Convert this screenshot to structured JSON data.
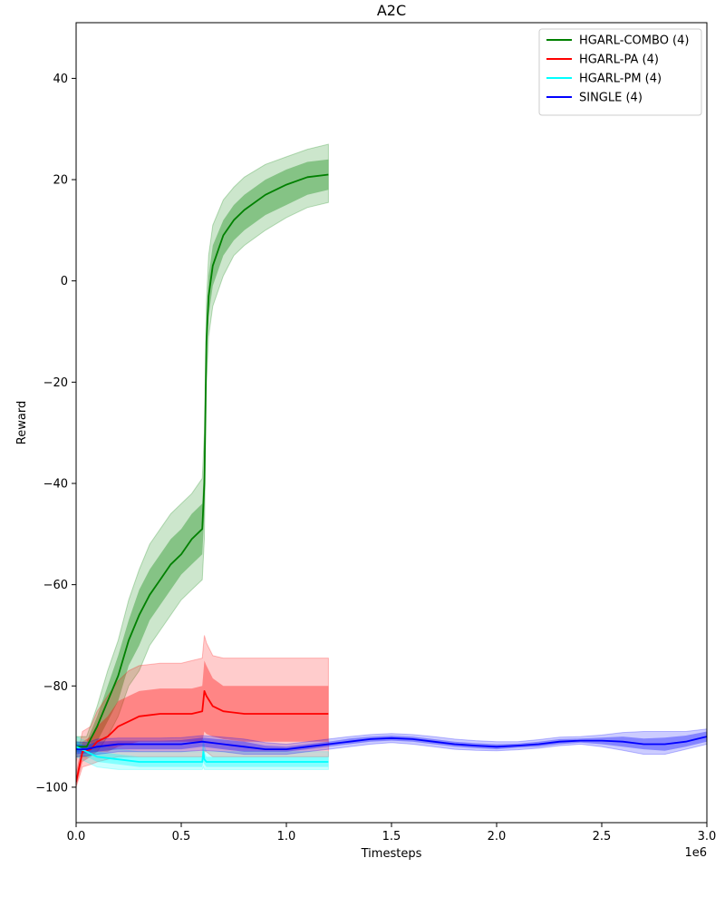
{
  "chart_data": {
    "type": "line",
    "title": "A2C",
    "xlabel": "Timesteps",
    "ylabel": "Reward",
    "x_offset_label": "1e6",
    "xlim": [
      0,
      3.0
    ],
    "ylim": [
      -107,
      51
    ],
    "xticks": [
      0,
      0.5,
      1.0,
      1.5,
      2.0,
      2.5,
      3.0
    ],
    "xtick_labels": [
      "0.0",
      "0.5",
      "1.0",
      "1.5",
      "2.0",
      "2.5",
      "3.0"
    ],
    "yticks": [
      -100,
      -80,
      -60,
      -40,
      -20,
      0,
      20,
      40
    ],
    "ytick_labels": [
      "−100",
      "−80",
      "−60",
      "−40",
      "−20",
      "0",
      "20",
      "40"
    ],
    "grid": false,
    "legend_position": "top-right",
    "series": [
      {
        "name": "HGARL-COMBO (4)",
        "color": "#008000",
        "x": [
          0,
          0.05,
          0.1,
          0.15,
          0.2,
          0.25,
          0.3,
          0.35,
          0.4,
          0.45,
          0.5,
          0.55,
          0.6,
          0.61,
          0.62,
          0.63,
          0.65,
          0.7,
          0.75,
          0.8,
          0.9,
          1.0,
          1.1,
          1.2
        ],
        "y": [
          -92,
          -92,
          -88,
          -83,
          -78,
          -71,
          -66,
          -62,
          -59,
          -56,
          -54,
          -51,
          -49,
          -40,
          -12,
          -3,
          3,
          9,
          12,
          14,
          17,
          19,
          20.5,
          21
        ],
        "std_low": [
          -93,
          -93,
          -91,
          -87,
          -83,
          -76,
          -72,
          -67,
          -64,
          -61,
          -58,
          -56,
          -54,
          -46,
          -16,
          -7,
          -1,
          5,
          8,
          10,
          13,
          15,
          17,
          18
        ],
        "std_high": [
          -91,
          -91,
          -86,
          -80,
          -74,
          -67,
          -61,
          -57,
          -54,
          -51,
          -49,
          -46,
          -44,
          -35,
          -8,
          1,
          7,
          12,
          15,
          17,
          20,
          22,
          23.5,
          24
        ],
        "min": [
          -94,
          -94,
          -93,
          -90,
          -86,
          -80,
          -77,
          -72,
          -69,
          -66,
          -63,
          -61,
          -59,
          -51,
          -20,
          -11,
          -5,
          1,
          5,
          7,
          10,
          12.5,
          14.5,
          15.5
        ],
        "max": [
          -90,
          -90,
          -84,
          -77,
          -71,
          -63,
          -57,
          -52,
          -49,
          -46,
          -44,
          -42,
          -39,
          -30,
          -4,
          5,
          11,
          16,
          18.5,
          20.5,
          23,
          24.5,
          26,
          27
        ]
      },
      {
        "name": "HGARL-PA (4)",
        "color": "#ff0000",
        "x": [
          0,
          0.03,
          0.07,
          0.1,
          0.15,
          0.2,
          0.25,
          0.3,
          0.4,
          0.5,
          0.55,
          0.6,
          0.61,
          0.62,
          0.65,
          0.7,
          0.8,
          0.9,
          1.0,
          1.1,
          1.2
        ],
        "y": [
          -99,
          -93,
          -92.5,
          -91,
          -90,
          -88,
          -87,
          -86,
          -85.5,
          -85.5,
          -85.5,
          -85,
          -81,
          -82,
          -84,
          -85,
          -85.5,
          -85.5,
          -85.5,
          -85.5,
          -85.5
        ],
        "std_low": [
          -100,
          -95,
          -94,
          -93,
          -93,
          -92,
          -91.5,
          -91,
          -91,
          -91,
          -91,
          -91,
          -89,
          -89.5,
          -90,
          -90.5,
          -91,
          -91,
          -91,
          -91,
          -91
        ],
        "std_high": [
          -97,
          -91,
          -90,
          -88,
          -86,
          -83,
          -82,
          -81,
          -80.5,
          -80.5,
          -80.5,
          -80,
          -75,
          -76,
          -78.5,
          -80,
          -80,
          -80,
          -80,
          -80,
          -80
        ],
        "min": [
          -100,
          -96,
          -95.5,
          -95,
          -94.5,
          -94,
          -94,
          -94,
          -94,
          -94,
          -94,
          -94,
          -93,
          -93,
          -94,
          -94,
          -94,
          -94,
          -94,
          -94,
          -94
        ],
        "max": [
          -95,
          -89,
          -88,
          -85,
          -82,
          -79,
          -77,
          -76,
          -75.5,
          -75.5,
          -75,
          -74.5,
          -70,
          -71.5,
          -74,
          -74.5,
          -74.5,
          -74.5,
          -74.5,
          -74.5,
          -74.5
        ]
      },
      {
        "name": "HGARL-PM (4)",
        "color": "#00ffff",
        "x": [
          0,
          0.05,
          0.1,
          0.2,
          0.3,
          0.4,
          0.5,
          0.6,
          0.605,
          0.61,
          0.62,
          0.7,
          0.8,
          0.9,
          1.0,
          1.1,
          1.2
        ],
        "y": [
          -92,
          -93,
          -94,
          -94.5,
          -95,
          -95,
          -95,
          -95,
          -93,
          -94.5,
          -95,
          -95,
          -95,
          -95,
          -95,
          -95,
          -95
        ],
        "std_low": [
          -93,
          -94,
          -95,
          -95.5,
          -96,
          -96,
          -96,
          -96,
          -95,
          -95.5,
          -96,
          -96,
          -96,
          -96,
          -96,
          -96,
          -96
        ],
        "std_high": [
          -91,
          -92,
          -93,
          -93.5,
          -94,
          -94,
          -94,
          -94,
          -91.5,
          -93,
          -94,
          -94,
          -94,
          -94,
          -94,
          -94,
          -94
        ],
        "min": [
          -94,
          -95,
          -96,
          -96.5,
          -96.5,
          -96.5,
          -96.5,
          -96.5,
          -96,
          -96.5,
          -96.5,
          -96.5,
          -96.5,
          -96.5,
          -96.5,
          -96.5,
          -96.5
        ],
        "max": [
          -90,
          -91,
          -92,
          -92.5,
          -93,
          -93,
          -93,
          -93,
          -90.5,
          -92,
          -93,
          -93,
          -93,
          -93,
          -93,
          -93,
          -93
        ]
      },
      {
        "name": "SINGLE (4)",
        "color": "#0000ff",
        "x": [
          0,
          0.05,
          0.1,
          0.2,
          0.3,
          0.4,
          0.5,
          0.6,
          0.7,
          0.8,
          0.9,
          1.0,
          1.1,
          1.2,
          1.3,
          1.4,
          1.5,
          1.6,
          1.7,
          1.8,
          1.9,
          2.0,
          2.1,
          2.2,
          2.3,
          2.4,
          2.5,
          2.6,
          2.7,
          2.8,
          2.9,
          3.0
        ],
        "y": [
          -92.5,
          -92.5,
          -92,
          -91.5,
          -91.5,
          -91.5,
          -91.5,
          -91,
          -91.5,
          -92,
          -92.5,
          -92.5,
          -92,
          -91.5,
          -91,
          -90.5,
          -90.3,
          -90.5,
          -91,
          -91.5,
          -91.8,
          -92,
          -91.8,
          -91.5,
          -91,
          -90.8,
          -90.8,
          -91,
          -91.5,
          -91.5,
          -91,
          -90
        ],
        "std_low": [
          -93.5,
          -93.3,
          -93,
          -92.5,
          -92.5,
          -92.5,
          -92.5,
          -92,
          -92.5,
          -93,
          -93,
          -93,
          -92.5,
          -92,
          -91.5,
          -91,
          -90.8,
          -91,
          -91.5,
          -92,
          -92.3,
          -92.5,
          -92.2,
          -92,
          -91.5,
          -91.2,
          -91.5,
          -92,
          -92.5,
          -92.8,
          -92,
          -91
        ],
        "std_high": [
          -91.5,
          -91.7,
          -91,
          -90.8,
          -90.8,
          -90.8,
          -90.7,
          -90.2,
          -90.6,
          -91,
          -91.8,
          -92,
          -91.5,
          -91,
          -90.4,
          -90,
          -89.8,
          -90,
          -90.5,
          -91,
          -91.3,
          -91.5,
          -91.4,
          -91,
          -90.5,
          -90.4,
          -90.2,
          -90,
          -90.4,
          -90.2,
          -89.8,
          -89
        ],
        "min": [
          -94,
          -93.8,
          -93.5,
          -93,
          -93,
          -93,
          -93,
          -92.7,
          -93,
          -93.5,
          -93.5,
          -93.5,
          -93,
          -92.5,
          -92,
          -91.5,
          -91.2,
          -91.5,
          -92,
          -92.5,
          -92.7,
          -92.8,
          -92.6,
          -92.3,
          -91.8,
          -91.5,
          -92,
          -92.7,
          -93.5,
          -93.5,
          -92.5,
          -91.5
        ],
        "max": [
          -91,
          -91.2,
          -90.5,
          -90.3,
          -90.3,
          -90.3,
          -90.2,
          -89.8,
          -90.1,
          -90.5,
          -91.2,
          -91.5,
          -91,
          -90.5,
          -90,
          -89.6,
          -89.4,
          -89.6,
          -90,
          -90.5,
          -90.8,
          -91,
          -91,
          -90.6,
          -90.1,
          -90,
          -89.7,
          -89.2,
          -89,
          -89,
          -89,
          -88.5
        ]
      }
    ]
  }
}
